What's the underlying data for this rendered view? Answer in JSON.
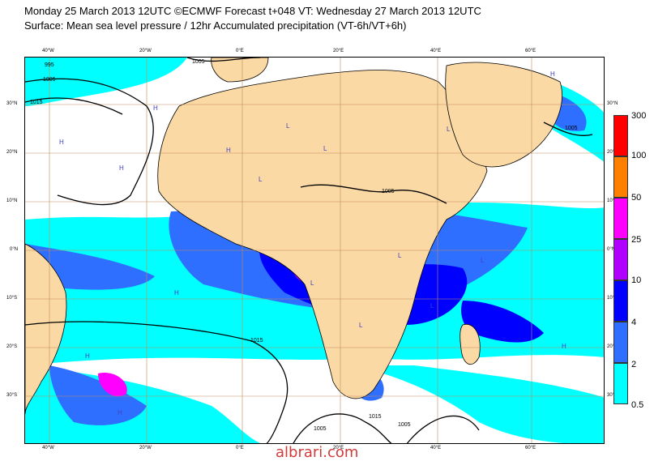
{
  "header": {
    "line1": "Monday 25 March 2013 12UTC ©ECMWF Forecast t+048 VT: Wednesday 27 March 2013 12UTC",
    "line2": "Surface: Mean sea level pressure / 12hr Accumulated precipitation (VT-6h/VT+6h)"
  },
  "axes": {
    "lon_ticks_top": [
      "40°W",
      "20°W",
      "0°E",
      "20°E",
      "40°E",
      "60°E"
    ],
    "lon_ticks_bottom": [
      "40°W",
      "20°W",
      "0°E",
      "20°E",
      "40°E",
      "60°E"
    ],
    "lat_ticks_left": [
      "30°N",
      "20°N",
      "10°N",
      "0°N",
      "10°S",
      "20°S",
      "30°S"
    ],
    "lat_ticks_right": [
      "30°N",
      "20°N",
      "10°N",
      "0°N",
      "10°S",
      "20°S",
      "30°S"
    ]
  },
  "isobar_labels": [
    "995",
    "1005",
    "1015",
    "1005",
    "1005",
    "1005",
    "1015",
    "1005",
    "1015",
    "1005"
  ],
  "pressure_markers": [
    "H",
    "H",
    "H",
    "H",
    "L",
    "L",
    "L",
    "L",
    "H",
    "H",
    "L",
    "L",
    "H",
    "L",
    "L",
    "H",
    "L",
    "H"
  ],
  "legend": {
    "labels": [
      "300",
      "100",
      "50",
      "25",
      "10",
      "4",
      "2",
      "0.5"
    ],
    "colors": [
      "#ff0000",
      "#ff7f00",
      "#ff00ff",
      "#b000ff",
      "#0000ff",
      "#2f6fff",
      "#00cfe8",
      "#00ffff"
    ]
  },
  "colors": {
    "land": "#fbd9a4",
    "ocean": "#ffffff",
    "grid": "#c08a5a",
    "isobar": "#000000"
  },
  "watermark": "albrari.com"
}
